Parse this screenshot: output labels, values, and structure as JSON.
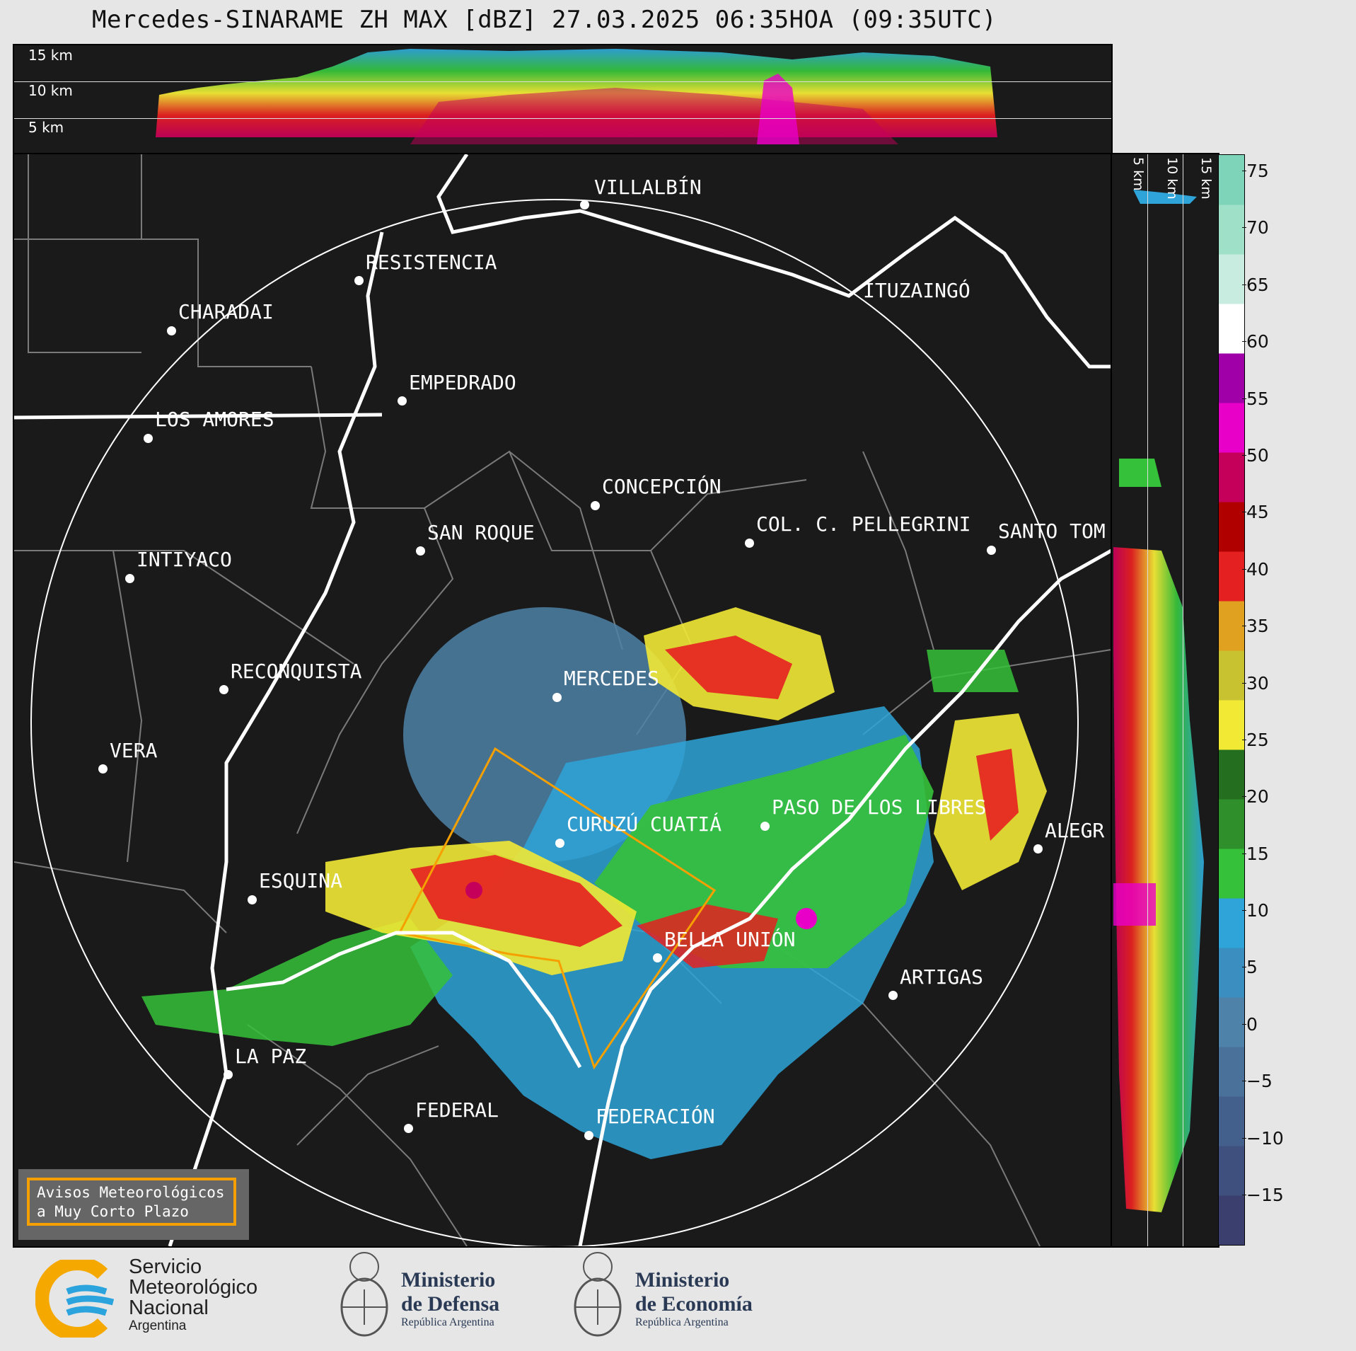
{
  "header": {
    "title": "Mercedes-SINARAME ZH MAX [dBZ] 27.03.2025 06:35HOA (09:35UTC)"
  },
  "top_panel": {
    "heights": [
      "15 km",
      "10 km",
      "5 km"
    ]
  },
  "side_panel": {
    "heights": [
      "5 km",
      "10 km",
      "15 km"
    ]
  },
  "colorbar": {
    "ticks": [
      "75",
      "70",
      "65",
      "60",
      "55",
      "50",
      "45",
      "40",
      "35",
      "30",
      "25",
      "20",
      "15",
      "10",
      "5",
      "0",
      "−5",
      "−10",
      "−15"
    ],
    "colors": [
      "#3a3f6e",
      "#3f4f7e",
      "#43608c",
      "#4a7199",
      "#4f82a8",
      "#3b8fc0",
      "#2ea4d8",
      "#36c13a",
      "#2f8f2a",
      "#236f1f",
      "#f2e935",
      "#c8c230",
      "#e0a020",
      "#e52020",
      "#b00000",
      "#c4005a",
      "#e800c8",
      "#a000a8",
      "#ffffff",
      "#c8ece0",
      "#9ee0c8",
      "#7ed4b8"
    ]
  },
  "map": {
    "cities": [
      {
        "name": "VILLALBÍN"
      },
      {
        "name": "RESISTENCIA"
      },
      {
        "name": "CHARADAI"
      },
      {
        "name": "ITUZAINGÓ"
      },
      {
        "name": "EMPEDRADO"
      },
      {
        "name": "LOS AMORES"
      },
      {
        "name": "CONCEPCIÓN"
      },
      {
        "name": "SAN ROQUE"
      },
      {
        "name": "COL. C. PELLEGRINI"
      },
      {
        "name": "SANTO TOM"
      },
      {
        "name": "INTIYACO"
      },
      {
        "name": "MERCEDES"
      },
      {
        "name": "RECONQUISTA"
      },
      {
        "name": "VERA"
      },
      {
        "name": "PASO DE LOS LIBRES"
      },
      {
        "name": "CURUZÚ CUATIÁ"
      },
      {
        "name": "ALEGR"
      },
      {
        "name": "ESQUINA"
      },
      {
        "name": "BELLA UNIÓN"
      },
      {
        "name": "ARTIGAS"
      },
      {
        "name": "LA PAZ"
      },
      {
        "name": "FEDERAL"
      },
      {
        "name": "FEDERACIÓN"
      }
    ]
  },
  "warning": {
    "line1": "Avisos Meteorológicos",
    "line2": "a Muy Corto Plazo"
  },
  "footer": {
    "smn": {
      "line1": "Servicio",
      "line2": "Meteorológico",
      "line3": "Nacional",
      "line4": "Argentina"
    },
    "defensa": {
      "line1": "Ministerio",
      "line2": "de Defensa",
      "line3": "República Argentina"
    },
    "economia": {
      "line1": "Ministerio",
      "line2": "de Economía",
      "line3": "República Argentina"
    }
  }
}
